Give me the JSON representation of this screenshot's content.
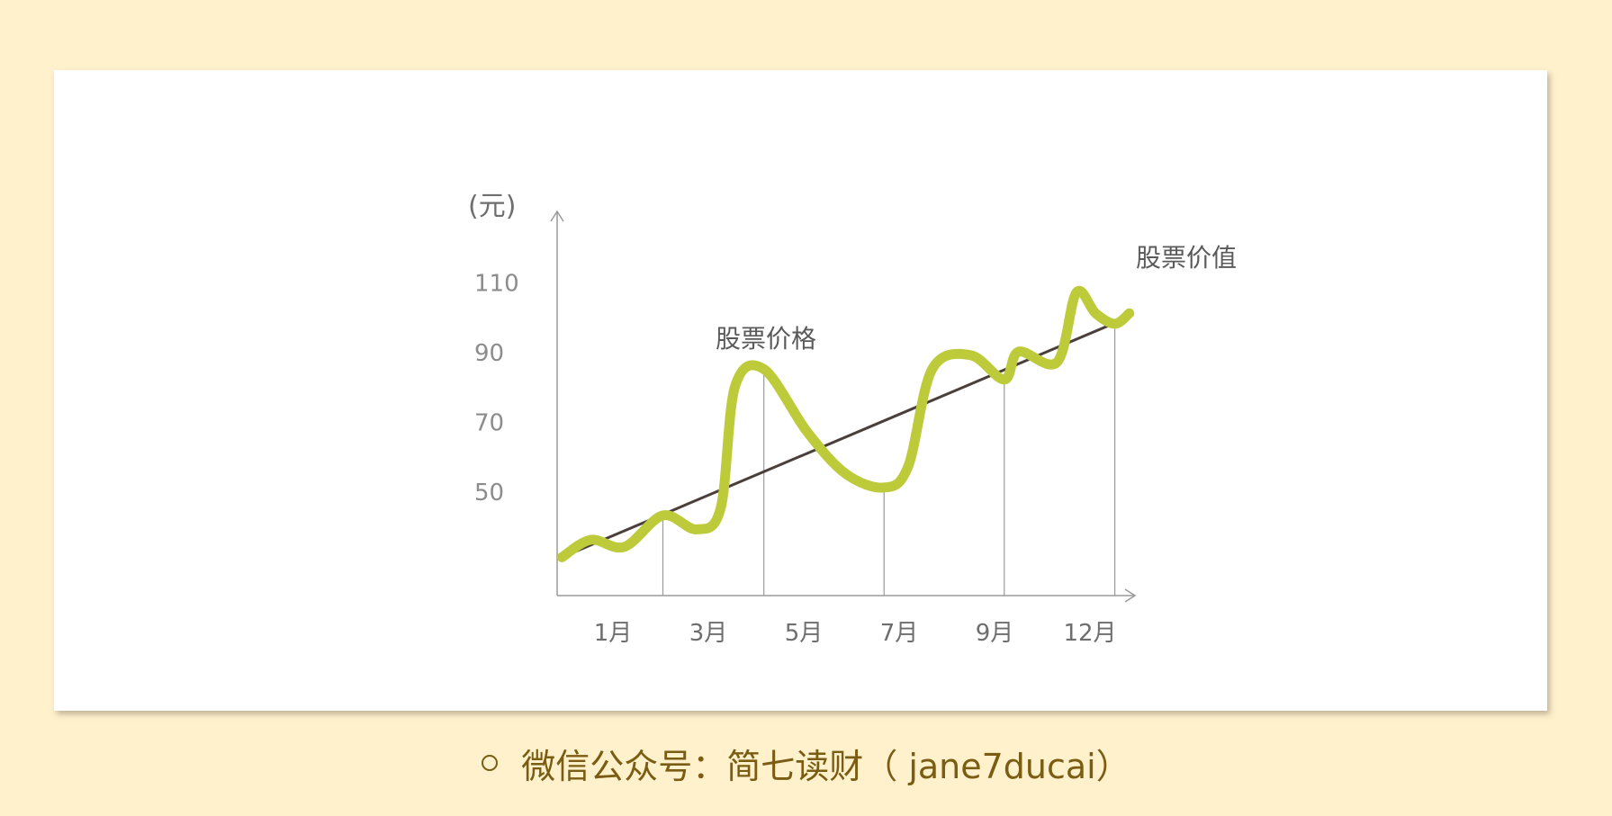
{
  "chart_data": {
    "type": "line",
    "y_unit_label": "(元)",
    "x_ticks": [
      "1月",
      "3月",
      "5月",
      "7月",
      "9月",
      "12月"
    ],
    "y_ticks": [
      50,
      70,
      90,
      110
    ],
    "series": [
      {
        "name": "股票价格",
        "color": "#bdcb3a",
        "points": [
          [
            0.1,
            31
          ],
          [
            0.7,
            36
          ],
          [
            1.4,
            34
          ],
          [
            2.2,
            43
          ],
          [
            2.9,
            39
          ],
          [
            3.4,
            45
          ],
          [
            3.7,
            80
          ],
          [
            4.3,
            85
          ],
          [
            5.2,
            67
          ],
          [
            6.0,
            55
          ],
          [
            6.8,
            51
          ],
          [
            7.3,
            57
          ],
          [
            7.8,
            85
          ],
          [
            8.6,
            89
          ],
          [
            9.3,
            82
          ],
          [
            9.6,
            90
          ],
          [
            10.4,
            87
          ],
          [
            10.8,
            107
          ],
          [
            11.2,
            101
          ],
          [
            11.6,
            98
          ],
          [
            11.9,
            101
          ]
        ]
      },
      {
        "name": "股票价值",
        "color": "#4a3f3a",
        "points": [
          [
            0.1,
            31
          ],
          [
            11.9,
            100
          ]
        ]
      }
    ],
    "xlim": [
      0,
      12
    ],
    "ylim": [
      20,
      130
    ],
    "grid": false
  },
  "caption": {
    "text": "微信公众号：简七读财（ jane7ducai）"
  }
}
